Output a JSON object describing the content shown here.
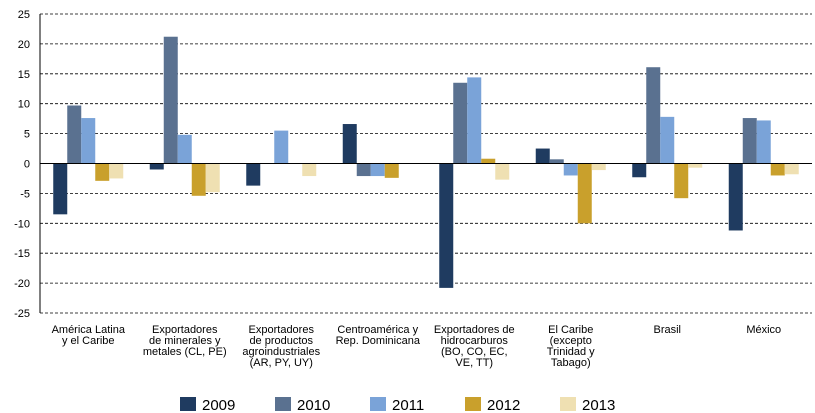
{
  "chart_data": {
    "type": "bar",
    "categories": [
      "América Latina\ny el Caribe",
      "Exportadores\nde minerales y\nmetales (CL, PE)",
      "Exportadores\nde productos\nagroindustriales\n(AR, PY, UY)",
      "Centroamérica y\nRep. Dominicana",
      "Exportadores de\nhidrocarburos\n(BO, CO, EC,\nVE, TT)",
      "El Caribe\n(excepto\nTrinidad y\nTabago)",
      "Brasil",
      "México"
    ],
    "series": [
      {
        "name": "2009",
        "color": "#1f3b60",
        "values": [
          -8.5,
          -1.0,
          -3.7,
          6.6,
          -20.8,
          2.5,
          -2.3,
          -11.2
        ]
      },
      {
        "name": "2010",
        "color": "#5a7190",
        "values": [
          9.7,
          21.2,
          null,
          -2.1,
          13.5,
          0.7,
          16.1,
          7.6
        ]
      },
      {
        "name": "2011",
        "color": "#7aa3d8",
        "values": [
          7.6,
          4.8,
          5.5,
          -2.1,
          14.4,
          -2.0,
          7.8,
          7.2
        ]
      },
      {
        "name": "2012",
        "color": "#c9a02c",
        "values": [
          -2.9,
          -5.4,
          null,
          -2.4,
          0.8,
          -10.0,
          -5.8,
          -2.0
        ]
      },
      {
        "name": "2013",
        "color": "#efe0b2",
        "values": [
          -2.5,
          -4.8,
          -2.1,
          null,
          -2.7,
          -1.1,
          -0.7,
          -1.8
        ]
      }
    ],
    "ylim": [
      -25,
      25
    ],
    "yticks": [
      -25,
      -20,
      -15,
      -10,
      -5,
      0,
      5,
      10,
      15,
      20,
      25
    ],
    "grid": true
  }
}
